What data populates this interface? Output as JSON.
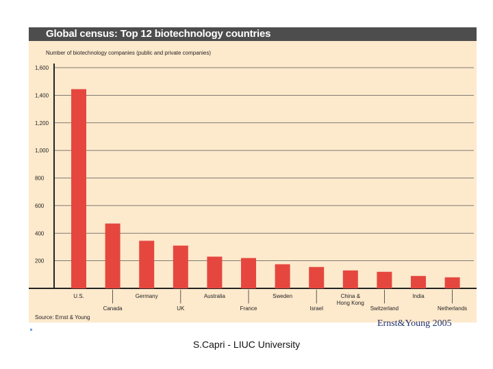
{
  "title": "Global census: Top 12 biotechnology countries",
  "caption": "Number of biotechnology companies (public and private companies)",
  "source": "Source: Ernst & Young",
  "credit": "Ernst&Young 2005",
  "footer": "S.Capri - LIUC University",
  "colors": {
    "bar": "#e5473f",
    "panel": "#fde9cc",
    "title_bar": "#4d4d4d",
    "grid": "#555555"
  },
  "chart_data": {
    "type": "bar",
    "title": "Global census: Top 12 biotechnology countries",
    "ylabel": "Number of biotechnology companies (public and private companies)",
    "xlabel": "",
    "ylim": [
      0,
      1600
    ],
    "yticks": [
      200,
      400,
      600,
      800,
      1000,
      1200,
      1400,
      1600
    ],
    "ytick_labels": [
      "200",
      "400",
      "600",
      "800",
      "1,000",
      "1,200",
      "1,400",
      "1,600"
    ],
    "grid": true,
    "categories": [
      "U.S.",
      "Canada",
      "Germany",
      "UK",
      "Australia",
      "France",
      "Sweden",
      "Israel",
      "China & Hong Kong",
      "Switzerland",
      "India",
      "Netherlands"
    ],
    "category_labels": [
      [
        "U.S."
      ],
      [
        "Canada"
      ],
      [
        "Germany"
      ],
      [
        "UK"
      ],
      [
        "Australia"
      ],
      [
        "France"
      ],
      [
        "Sweden"
      ],
      [
        "Israel"
      ],
      [
        "China &",
        "Hong Kong"
      ],
      [
        "Switzerland"
      ],
      [
        "India"
      ],
      [
        "Netherlands"
      ]
    ],
    "values": [
      1444,
      470,
      345,
      310,
      230,
      220,
      175,
      155,
      130,
      120,
      90,
      80
    ]
  }
}
